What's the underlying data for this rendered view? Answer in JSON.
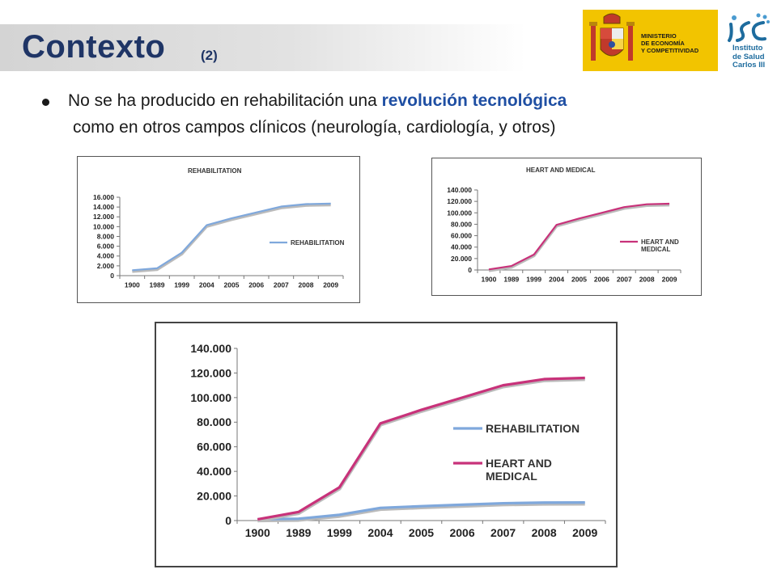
{
  "header": {
    "title": "Contexto",
    "title_number": "(2)"
  },
  "logos": {
    "ministerio_lines": [
      "MINISTERIO",
      "DE ECONOMÍA",
      "Y COMPETITIVIDAD"
    ],
    "isciii_lines": [
      "Instituto",
      "de Salud",
      "Carlos III"
    ]
  },
  "bullet": {
    "line1_pre": "No se ha producido en rehabilitación una ",
    "line1_highlight": "revolución tecnológica",
    "line2": "como en otros campos clínicos (neurología, cardiología, y otros)"
  },
  "colors": {
    "title": "#1f3566",
    "highlight": "#1f4fa3",
    "rehabilitation": "#7fa8dc",
    "heart": "#c8327a"
  },
  "chart_data": [
    {
      "type": "line",
      "title": "REHABILITATION",
      "categories": [
        "1900",
        "1989",
        "1999",
        "2004",
        "2005",
        "2006",
        "2007",
        "2008",
        "2009"
      ],
      "y_ticks": [
        "0",
        "2.000",
        "4.000",
        "6.000",
        "8.000",
        "10.000",
        "12.000",
        "14.000",
        "16.000"
      ],
      "ylim": [
        0,
        16000
      ],
      "grid": false,
      "legend": "right",
      "series": [
        {
          "name": "REHABILITATION",
          "color": "#7fa8dc",
          "values": [
            1100,
            1500,
            4700,
            10300,
            11700,
            12900,
            14100,
            14600,
            14700
          ]
        }
      ]
    },
    {
      "type": "line",
      "title": "HEART AND MEDICAL",
      "categories": [
        "1900",
        "1989",
        "1999",
        "2004",
        "2005",
        "2006",
        "2007",
        "2008",
        "2009"
      ],
      "y_ticks": [
        "0",
        "20.000",
        "40.000",
        "60.000",
        "80.000",
        "100.000",
        "120.000",
        "140.000"
      ],
      "ylim": [
        0,
        140000
      ],
      "grid": false,
      "legend": "right",
      "series": [
        {
          "name": "HEART AND MEDICAL",
          "color": "#c8327a",
          "values": [
            1000,
            7000,
            27000,
            79000,
            90000,
            100000,
            110000,
            115000,
            116000
          ]
        }
      ]
    },
    {
      "type": "line",
      "title": "",
      "categories": [
        "1900",
        "1989",
        "1999",
        "2004",
        "2005",
        "2006",
        "2007",
        "2008",
        "2009"
      ],
      "y_ticks": [
        "0",
        "20.000",
        "40.000",
        "60.000",
        "80.000",
        "100.000",
        "120.000",
        "140.000"
      ],
      "ylim": [
        0,
        140000
      ],
      "grid": false,
      "legend": "right",
      "series": [
        {
          "name": "REHABILITATION",
          "color": "#7fa8dc",
          "values": [
            1100,
            1500,
            4700,
            10300,
            11700,
            12900,
            14100,
            14600,
            14700
          ]
        },
        {
          "name": "HEART AND MEDICAL",
          "color": "#c8327a",
          "values": [
            1000,
            7000,
            27000,
            79000,
            90000,
            100000,
            110000,
            115000,
            116000
          ]
        }
      ]
    }
  ]
}
